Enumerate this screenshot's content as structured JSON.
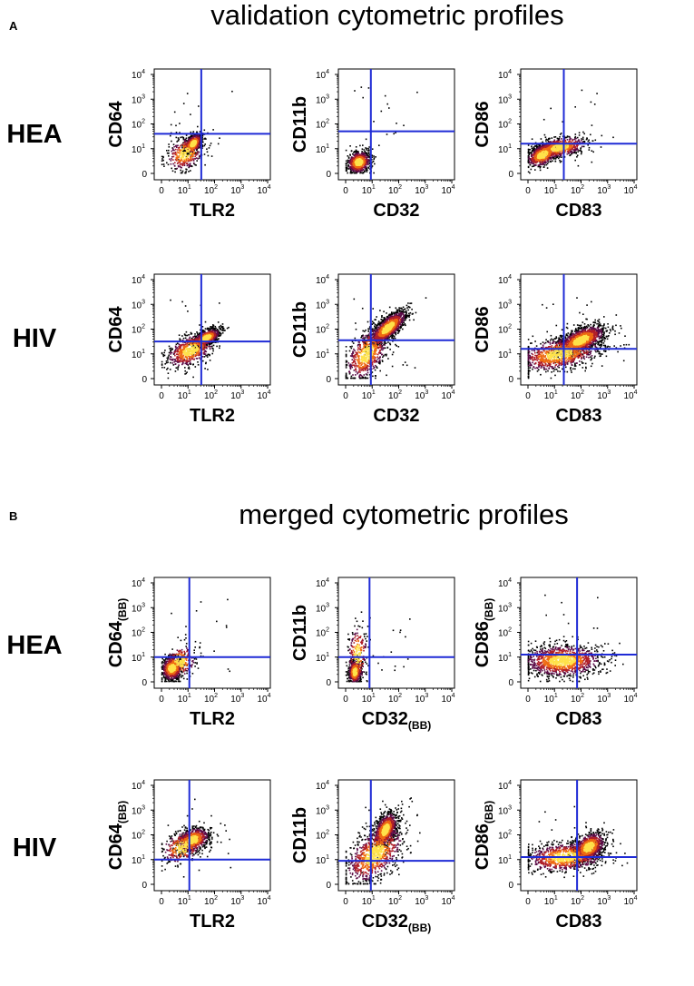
{
  "figure": {
    "panel_a": {
      "letter": "A",
      "title": "validation cytometric profiles",
      "rows": [
        {
          "label": "HEA"
        },
        {
          "label": "HIV"
        }
      ]
    },
    "panel_b": {
      "letter": "B",
      "title": "merged cytometric profiles",
      "rows": [
        {
          "label": "HEA"
        },
        {
          "label": "HIV"
        }
      ]
    }
  },
  "tick_labels": {
    "zero": "0",
    "base": "10",
    "exponents": [
      "1",
      "2",
      "3",
      "4"
    ]
  },
  "colors": {
    "gate": "#1f2bd6",
    "density_low": "#000000",
    "density_mid1": "#5a0a46",
    "density_mid2": "#b01e28",
    "density_mid3": "#ee6a12",
    "density_high": "#ffe24a"
  },
  "chart_data": [
    {
      "panel": "A",
      "row": "HEA",
      "type": "scatter",
      "xlabel": "TLR2",
      "ylabel": "CD64",
      "xsub": "",
      "ysub": "",
      "xlim": [
        0,
        4
      ],
      "ylim": [
        0,
        4
      ],
      "gate_x": 1.5,
      "gate_y": 1.6,
      "clusters": [
        {
          "x": 1.2,
          "y": 1.2,
          "sx": 0.17,
          "sy": 0.2,
          "rho": 0.5,
          "n": 650
        },
        {
          "x": 0.9,
          "y": 0.8,
          "sx": 0.35,
          "sy": 0.35,
          "rho": 0.3,
          "n": 380
        }
      ]
    },
    {
      "panel": "A",
      "row": "HEA",
      "type": "scatter",
      "xlabel": "CD32",
      "ylabel": "CD11b",
      "xsub": "",
      "ysub": "",
      "xlim": [
        0,
        4
      ],
      "ylim": [
        0,
        4
      ],
      "gate_x": 0.95,
      "gate_y": 1.7,
      "clusters": [
        {
          "x": 0.5,
          "y": 0.45,
          "sx": 0.22,
          "sy": 0.22,
          "rho": 0.15,
          "n": 750
        }
      ]
    },
    {
      "panel": "A",
      "row": "HEA",
      "type": "scatter",
      "xlabel": "CD83",
      "ylabel": "CD86",
      "xsub": "",
      "ysub": "",
      "xlim": [
        0,
        4
      ],
      "ylim": [
        0,
        4
      ],
      "gate_x": 1.35,
      "gate_y": 1.2,
      "clusters": [
        {
          "x": 0.55,
          "y": 0.75,
          "sx": 0.3,
          "sy": 0.25,
          "rho": 0.45,
          "n": 650
        },
        {
          "x": 1.2,
          "y": 1.05,
          "sx": 0.5,
          "sy": 0.22,
          "rho": 0.4,
          "n": 750
        }
      ]
    },
    {
      "panel": "A",
      "row": "HIV",
      "type": "scatter",
      "xlabel": "TLR2",
      "ylabel": "CD64",
      "xsub": "",
      "ysub": "",
      "xlim": [
        0,
        4
      ],
      "ylim": [
        0,
        4
      ],
      "gate_x": 1.5,
      "gate_y": 1.5,
      "clusters": [
        {
          "x": 1.7,
          "y": 1.65,
          "sx": 0.25,
          "sy": 0.18,
          "rho": 0.55,
          "n": 850
        },
        {
          "x": 1.1,
          "y": 1.15,
          "sx": 0.45,
          "sy": 0.35,
          "rho": 0.45,
          "n": 650
        }
      ]
    },
    {
      "panel": "A",
      "row": "HIV",
      "type": "scatter",
      "xlabel": "CD32",
      "ylabel": "CD11b",
      "xsub": "",
      "ysub": "",
      "xlim": [
        0,
        4
      ],
      "ylim": [
        0,
        4
      ],
      "gate_x": 0.95,
      "gate_y": 1.55,
      "clusters": [
        {
          "x": 1.6,
          "y": 2.05,
          "sx": 0.35,
          "sy": 0.35,
          "rho": 0.75,
          "n": 1300
        },
        {
          "x": 0.8,
          "y": 1.0,
          "sx": 0.4,
          "sy": 0.55,
          "rho": 0.5,
          "n": 700
        }
      ]
    },
    {
      "panel": "A",
      "row": "HIV",
      "type": "scatter",
      "xlabel": "CD83",
      "ylabel": "CD86",
      "xsub": "",
      "ysub": "",
      "xlim": [
        0,
        4
      ],
      "ylim": [
        0,
        4
      ],
      "gate_x": 1.35,
      "gate_y": 1.2,
      "clusters": [
        {
          "x": 2.0,
          "y": 1.55,
          "sx": 0.45,
          "sy": 0.3,
          "rho": 0.6,
          "n": 1300
        },
        {
          "x": 1.2,
          "y": 1.0,
          "sx": 0.8,
          "sy": 0.35,
          "rho": 0.4,
          "n": 1000
        }
      ]
    },
    {
      "panel": "B",
      "row": "HEA",
      "type": "scatter",
      "xlabel": "TLR2",
      "ylabel": "CD64",
      "xsub": "",
      "ysub": "(BB)",
      "xlim": [
        0,
        4
      ],
      "ylim": [
        0,
        4
      ],
      "gate_x": 1.05,
      "gate_y": 1.0,
      "clusters": [
        {
          "x": 0.4,
          "y": 0.55,
          "sx": 0.2,
          "sy": 0.25,
          "rho": 0.1,
          "n": 650
        },
        {
          "x": 0.7,
          "y": 0.8,
          "sx": 0.3,
          "sy": 0.35,
          "rho": 0.2,
          "n": 250
        }
      ]
    },
    {
      "panel": "B",
      "row": "HEA",
      "type": "scatter",
      "xlabel": "CD32",
      "ylabel": "CD11b",
      "xsub": "(BB)",
      "ysub": "",
      "xlim": [
        0,
        4
      ],
      "ylim": [
        0,
        4
      ],
      "gate_x": 0.9,
      "gate_y": 1.0,
      "clusters": [
        {
          "x": 0.35,
          "y": 0.4,
          "sx": 0.12,
          "sy": 0.25,
          "rho": 0.1,
          "n": 500
        },
        {
          "x": 0.45,
          "y": 1.1,
          "sx": 0.18,
          "sy": 0.6,
          "rho": 0.1,
          "n": 250
        }
      ]
    },
    {
      "panel": "B",
      "row": "HEA",
      "type": "scatter",
      "xlabel": "CD83",
      "ylabel": "CD86",
      "xsub": "",
      "ysub": "(BB)",
      "xlim": [
        0,
        4
      ],
      "ylim": [
        0,
        4
      ],
      "gate_x": 1.85,
      "gate_y": 1.1,
      "clusters": [
        {
          "x": 1.3,
          "y": 0.85,
          "sx": 0.75,
          "sy": 0.32,
          "rho": 0.05,
          "n": 1300
        }
      ]
    },
    {
      "panel": "B",
      "row": "HIV",
      "type": "scatter",
      "xlabel": "TLR2",
      "ylabel": "CD64",
      "xsub": "",
      "ysub": "(BB)",
      "xlim": [
        0,
        4
      ],
      "ylim": [
        0,
        4
      ],
      "gate_x": 1.05,
      "gate_y": 1.0,
      "clusters": [
        {
          "x": 1.2,
          "y": 1.8,
          "sx": 0.3,
          "sy": 0.25,
          "rho": 0.3,
          "n": 800
        },
        {
          "x": 0.8,
          "y": 1.5,
          "sx": 0.4,
          "sy": 0.35,
          "rho": 0.3,
          "n": 300
        }
      ]
    },
    {
      "panel": "B",
      "row": "HIV",
      "type": "scatter",
      "xlabel": "CD32",
      "ylabel": "CD11b",
      "xsub": "(BB)",
      "ysub": "",
      "xlim": [
        0,
        4
      ],
      "ylim": [
        0,
        4
      ],
      "gate_x": 0.95,
      "gate_y": 0.95,
      "clusters": [
        {
          "x": 1.5,
          "y": 2.2,
          "sx": 0.22,
          "sy": 0.35,
          "rho": 0.5,
          "n": 900
        },
        {
          "x": 1.1,
          "y": 1.2,
          "sx": 0.55,
          "sy": 0.6,
          "rho": 0.55,
          "n": 900
        }
      ]
    },
    {
      "panel": "B",
      "row": "HIV",
      "type": "scatter",
      "xlabel": "CD83",
      "ylabel": "CD86",
      "xsub": "",
      "ysub": "(BB)",
      "xlim": [
        0,
        4
      ],
      "ylim": [
        0,
        4
      ],
      "gate_x": 1.85,
      "gate_y": 1.1,
      "clusters": [
        {
          "x": 2.3,
          "y": 1.5,
          "sx": 0.3,
          "sy": 0.3,
          "rho": 0.4,
          "n": 900
        },
        {
          "x": 1.4,
          "y": 1.1,
          "sx": 0.75,
          "sy": 0.3,
          "rho": 0.2,
          "n": 900
        }
      ]
    }
  ]
}
